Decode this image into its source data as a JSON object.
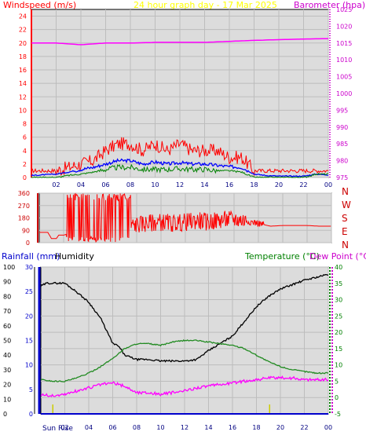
{
  "header": {
    "left_label": "Windspeed (m/s)",
    "center_label": "24 hour graph day - 17 Mar 2025",
    "right_label": "Barometer (hpa)"
  },
  "direction_labels": [
    "N",
    "W",
    "S",
    "E",
    "N"
  ],
  "lower_header": {
    "rainfall_label": "Rainfall (mm)",
    "humidity_label": "Humidity",
    "temperature_label": "Temperature (°C)",
    "dewpoint_label": "Dew Point (°C)"
  },
  "sun_label": "Sun Rise",
  "colors": {
    "wind_gust": "#ff0000",
    "wind_avg": "#0000ff",
    "wind_low": "#008000",
    "barometer": "#ff00ff",
    "direction": "#ff0000",
    "humidity": "#000000",
    "temperature": "#228b22",
    "dewpoint": "#ff00ff",
    "rainfall": "#0000cc",
    "sun": "#cccc00"
  },
  "chart_data": [
    {
      "type": "line",
      "x_ticks": [
        "02",
        "04",
        "06",
        "08",
        "10",
        "12",
        "14",
        "16",
        "18",
        "20",
        "22",
        "00"
      ],
      "ylim_left": [
        0,
        25
      ],
      "yticks_left": [
        0,
        2,
        4,
        6,
        8,
        10,
        12,
        14,
        16,
        18,
        20,
        22,
        24
      ],
      "ylim_right": [
        975,
        1025
      ],
      "yticks_right": [
        975,
        980,
        985,
        990,
        995,
        1000,
        1005,
        1010,
        1015,
        1020,
        1025
      ],
      "grid": true,
      "series": [
        {
          "axis": "right",
          "x": [
            0,
            2,
            4,
            6,
            8,
            10,
            12,
            14,
            16,
            18,
            20,
            22,
            24
          ],
          "values": [
            1015,
            1015,
            1014.5,
            1015,
            1015,
            1015.2,
            1015.2,
            1015.2,
            1015.5,
            1015.8,
            1016,
            1016.2,
            1016.3
          ]
        },
        {
          "axis": "left",
          "x": [
            0,
            2,
            3,
            4,
            5,
            6,
            7,
            8,
            9,
            10,
            11,
            12,
            13,
            14,
            15,
            16,
            17,
            18,
            19,
            20,
            21,
            22,
            23,
            24
          ],
          "values": [
            1,
            1,
            1.5,
            2,
            2.5,
            4,
            5,
            5,
            4,
            5,
            4,
            5,
            4,
            4,
            4,
            3,
            3,
            1,
            1,
            1,
            1,
            1,
            1,
            1
          ]
        },
        {
          "axis": "left",
          "x": [
            0,
            2,
            3,
            4,
            5,
            6,
            7,
            8,
            9,
            10,
            11,
            12,
            13,
            14,
            15,
            16,
            17,
            18,
            19,
            20,
            21,
            22,
            23,
            24
          ],
          "values": [
            0.3,
            0.5,
            0.8,
            1.2,
            1.5,
            2,
            2.5,
            2.5,
            2,
            2.3,
            2,
            2.2,
            2,
            2,
            1.8,
            1.6,
            1.5,
            0.5,
            0.3,
            0.2,
            0.2,
            0.2,
            0.5,
            0.4
          ]
        },
        {
          "axis": "left",
          "x": [
            0,
            2,
            3,
            4,
            5,
            6,
            7,
            8,
            9,
            10,
            11,
            12,
            13,
            14,
            15,
            16,
            17,
            18,
            19,
            20,
            21,
            22,
            23,
            24
          ],
          "values": [
            0,
            0,
            0.3,
            0.5,
            0.8,
            1.2,
            1.5,
            1.5,
            1.2,
            1.2,
            1.2,
            1.3,
            1.2,
            1.2,
            1,
            1,
            0.8,
            0,
            0,
            0,
            0,
            0,
            0.5,
            0.5
          ]
        }
      ]
    },
    {
      "type": "line",
      "x_ticks": [
        "02",
        "04",
        "06",
        "08",
        "10",
        "12",
        "14",
        "16",
        "18",
        "20",
        "22",
        "00"
      ],
      "ylim": [
        0,
        360
      ],
      "yticks": [
        0,
        90,
        180,
        270,
        360
      ],
      "series": [
        {
          "x": [
            0,
            0.7,
            1,
            1.4,
            1.6,
            2,
            3,
            4,
            5,
            6,
            7,
            8,
            9,
            10,
            11,
            12,
            13,
            14,
            15,
            16,
            17,
            18,
            19,
            20,
            21,
            22,
            23,
            24
          ],
          "values": [
            75,
            75,
            30,
            30,
            55,
            55,
            80,
            200,
            100,
            150,
            110,
            130,
            140,
            150,
            140,
            150,
            160,
            150,
            165,
            170,
            160,
            140,
            120,
            125,
            125,
            125,
            120,
            120
          ]
        }
      ]
    },
    {
      "type": "line",
      "x_ticks": [
        "02",
        "04",
        "06",
        "08",
        "10",
        "12",
        "14",
        "16",
        "18",
        "20",
        "22",
        "00"
      ],
      "ylim_humidity": [
        0,
        100
      ],
      "yticks_humidity": [
        0,
        10,
        20,
        30,
        40,
        50,
        60,
        70,
        80,
        90,
        100
      ],
      "ylim_rain": [
        0,
        30
      ],
      "yticks_rain": [
        0,
        5,
        10,
        15,
        20,
        25,
        30
      ],
      "ylim_temp": [
        -5,
        40
      ],
      "yticks_temp": [
        -5,
        0,
        5,
        10,
        15,
        20,
        25,
        30,
        35,
        40
      ],
      "series": [
        {
          "axis": "humidity",
          "x": [
            0,
            0.5,
            1,
            2,
            3,
            4,
            5,
            6,
            6.5,
            7,
            8,
            9,
            10,
            11,
            12,
            13,
            14,
            15,
            16,
            17,
            18,
            19,
            20,
            21,
            22,
            23,
            24
          ],
          "values": [
            87,
            89,
            89,
            89,
            83,
            76,
            65,
            48,
            46,
            40,
            37,
            37,
            36,
            36,
            36,
            37,
            43,
            48,
            53,
            63,
            73,
            80,
            85,
            88,
            91,
            93,
            95
          ]
        },
        {
          "axis": "temp",
          "x": [
            0,
            1,
            2,
            3,
            4,
            5,
            6,
            7,
            8,
            9,
            10,
            11,
            12,
            13,
            14,
            15,
            16,
            17,
            18,
            19,
            20,
            21,
            22,
            23,
            24
          ],
          "values": [
            5.5,
            5,
            5,
            6,
            7.5,
            9.5,
            12,
            15,
            16.5,
            16.5,
            16,
            17,
            17.5,
            17.5,
            17,
            16.5,
            16,
            15,
            13,
            11,
            9.5,
            8.5,
            8,
            7.5,
            7.5
          ]
        },
        {
          "axis": "temp",
          "x": [
            0,
            1,
            2,
            3,
            4,
            5,
            6,
            7,
            8,
            9,
            10,
            11,
            12,
            13,
            14,
            15,
            16,
            17,
            18,
            19,
            20,
            21,
            22,
            23,
            24
          ],
          "values": [
            1,
            0.5,
            1,
            2,
            3,
            4,
            4.5,
            3.5,
            1.5,
            1.5,
            1,
            1.5,
            2,
            3,
            3.5,
            4,
            4.5,
            5,
            5.5,
            6,
            6,
            6,
            5.5,
            5.5,
            5.5
          ]
        },
        {
          "axis": "rain",
          "x": [
            0,
            24
          ],
          "values": [
            0,
            0
          ]
        }
      ]
    }
  ]
}
